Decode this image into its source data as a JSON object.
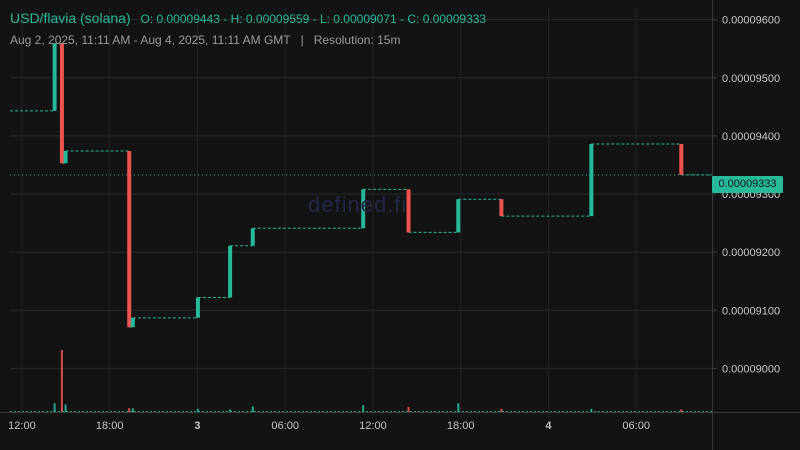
{
  "header": {
    "symbol": "USD/flavia (solana)",
    "ohlc": "O: 0.00009443 - H: 0.00009559 - L: 0.00009071 - C: 0.00009333",
    "range": "Aug 2, 2025, 11:11 AM - Aug 4, 2025, 11:11 AM GMT",
    "separator": "|",
    "resolution": "Resolution: 15m"
  },
  "watermark": "defined.fi",
  "last_price_label": "0.00009333",
  "colors": {
    "up": "#26b99a",
    "down": "#ef5350",
    "background": "#131313",
    "grid": "#2a2a2a"
  },
  "chart_data": {
    "type": "candlestick",
    "title": "USD/flavia (solana)",
    "ylim": [
      8.925e-05,
      9.62e-05
    ],
    "xlim": [
      "2025-08-02 11:11",
      "2025-08-04 11:11"
    ],
    "y_ticks": [
      "0.00009000",
      "0.00009100",
      "0.00009200",
      "0.00009300",
      "0.00009400",
      "0.00009500",
      "0.00009600"
    ],
    "x_ticks": [
      {
        "label": "12:00",
        "t": 0.8167
      },
      {
        "label": "18:00",
        "t": 6.8167
      },
      {
        "label": "3",
        "t": 12.8167,
        "bold": true
      },
      {
        "label": "06:00",
        "t": 18.8167
      },
      {
        "label": "12:00",
        "t": 24.8167
      },
      {
        "label": "18:00",
        "t": 30.8167
      },
      {
        "label": "4",
        "t": 36.8167,
        "bold": true
      },
      {
        "label": "06:00",
        "t": 42.8167
      }
    ],
    "grid": true,
    "last_price": 9.333e-05,
    "candles": [
      {
        "t": 3.05,
        "o": 9.443e-05,
        "c": 9.559e-05
      },
      {
        "t": 3.55,
        "o": 9.559e-05,
        "c": 9.353e-05
      },
      {
        "t": 3.8,
        "o": 9.353e-05,
        "c": 9.374e-05
      },
      {
        "t": 8.15,
        "o": 9.374e-05,
        "c": 9.071e-05
      },
      {
        "t": 8.4,
        "o": 9.071e-05,
        "c": 9.087e-05
      },
      {
        "t": 12.85,
        "o": 9.087e-05,
        "c": 9.122e-05
      },
      {
        "t": 15.05,
        "o": 9.122e-05,
        "c": 9.211e-05
      },
      {
        "t": 16.6,
        "o": 9.211e-05,
        "c": 9.241e-05
      },
      {
        "t": 24.15,
        "o": 9.241e-05,
        "c": 9.308e-05
      },
      {
        "t": 27.25,
        "o": 9.308e-05,
        "c": 9.234e-05
      },
      {
        "t": 30.65,
        "o": 9.234e-05,
        "c": 9.291e-05
      },
      {
        "t": 33.6,
        "o": 9.291e-05,
        "c": 9.262e-05
      },
      {
        "t": 39.75,
        "o": 9.262e-05,
        "c": 9.386e-05
      },
      {
        "t": 45.9,
        "o": 9.386e-05,
        "c": 9.333e-05
      }
    ],
    "volume_ylim": [
      0,
      1
    ],
    "volume": [
      {
        "t": 3.05,
        "v": 0.14,
        "up": true
      },
      {
        "t": 3.55,
        "v": 1.0,
        "up": false
      },
      {
        "t": 3.8,
        "v": 0.12,
        "up": true
      },
      {
        "t": 8.15,
        "v": 0.06,
        "up": false
      },
      {
        "t": 8.4,
        "v": 0.06,
        "up": true
      },
      {
        "t": 12.85,
        "v": 0.05,
        "up": true
      },
      {
        "t": 15.05,
        "v": 0.04,
        "up": true
      },
      {
        "t": 16.6,
        "v": 0.09,
        "up": true
      },
      {
        "t": 24.15,
        "v": 0.11,
        "up": true
      },
      {
        "t": 27.25,
        "v": 0.08,
        "up": false
      },
      {
        "t": 30.65,
        "v": 0.14,
        "up": true
      },
      {
        "t": 33.6,
        "v": 0.05,
        "up": false
      },
      {
        "t": 39.75,
        "v": 0.05,
        "up": true
      },
      {
        "t": 45.9,
        "v": 0.04,
        "up": false
      }
    ]
  }
}
